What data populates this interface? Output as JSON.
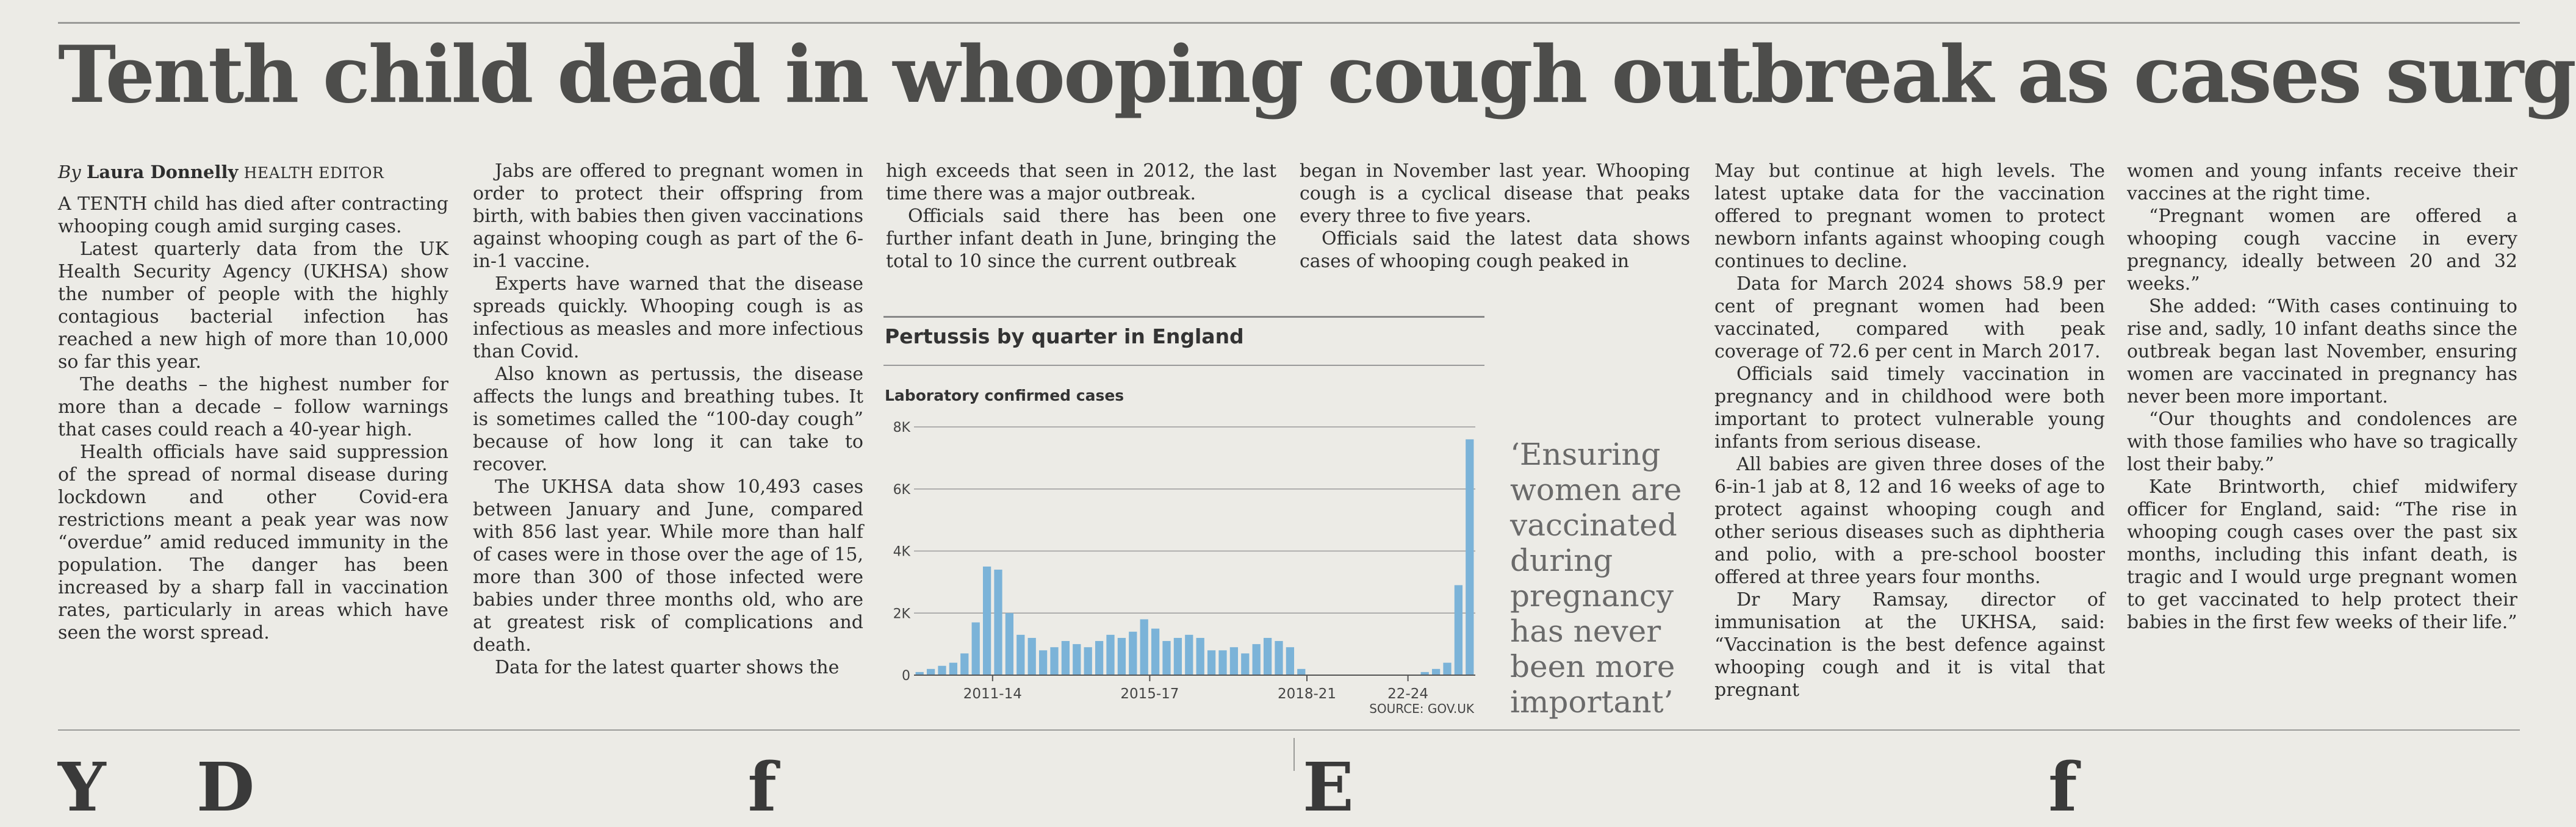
{
  "headline": "Tenth child dead in whooping cough outbreak as cases surge",
  "byline": {
    "by": "By",
    "name": "Laura Donnelly",
    "role": "HEALTH EDITOR"
  },
  "columns": [
    [
      "A TENTH child has died after contracting whooping cough amid surging cases.",
      "Latest quarterly data from the UK Health Security Agency (UKHSA) show the number of people with the highly contagious bacterial infection has reached a new high of more than 10,000 so far this year.",
      "The deaths – the highest number for more than a decade – follow warnings that cases could reach a 40-year high.",
      "Health officials have said suppression of the spread of normal disease during lockdown and other Covid-era restrictions meant a peak year was now “overdue” amid reduced immunity in the population. The danger has been increased by a sharp fall in vaccination rates, particularly in areas which have seen the worst spread."
    ],
    [
      "Jabs are offered to pregnant women in order to protect their offspring from birth, with babies then given vaccinations against whooping cough as part of the 6-in-1 vaccine.",
      "Experts have warned that the disease spreads quickly. Whooping cough is as infectious as measles and more infectious than Covid.",
      "Also known as pertussis, the disease affects the lungs and breathing tubes. It is sometimes called the “100-day cough” because of how long it can take to recover.",
      "The UKHSA data show 10,493 cases between January and June, compared with 856 last year. While more than half of cases were in those over the age of 15, more than 300 of those infected were babies under three months old, who are at greatest risk of complications and death.",
      "Data for the latest quarter shows the"
    ],
    [
      "high exceeds that seen in 2012, the last time there was a major outbreak.",
      "Officials said there has been one further infant death in June, bringing the total to 10 since the current outbreak"
    ],
    [
      "began in November last year. Whooping cough is a cyclical disease that peaks every three to five years.",
      "Officials said the latest data shows cases of whooping cough peaked in"
    ],
    [
      "May but continue at high levels. The latest uptake data for the vaccination offered to pregnant women to protect newborn infants against whooping cough continues to decline.",
      "Data for March 2024 shows 58.9 per cent of pregnant women had been vaccinated, compared with peak coverage of 72.6 per cent in March 2017.",
      "Officials said timely vaccination in pregnancy and in childhood were both important to protect vulnerable young infants from serious disease.",
      "All babies are given three doses of the 6-in-1 jab at 8, 12 and 16 weeks of age to protect against whooping cough and other serious diseases such as diphtheria and polio, with a pre-school booster offered at three years four months.",
      "Dr Mary Ramsay, director of immunisation at the UKHSA, said: “Vaccination is the best defence against whooping cough and it is vital that pregnant"
    ],
    [
      "women and young infants receive their vaccines at the right time.",
      "“Pregnant women are offered a whooping cough vaccine in every pregnancy, ideally between 20 and 32 weeks.”",
      "She added: “With cases continuing to rise and, sadly, 10 infant deaths since the outbreak began last November, ensuring women are vaccinated in pregnancy has never been more important.",
      "“Our thoughts and condolences are with those families who have so tragically lost their baby.”",
      "Kate Brintworth, chief midwifery officer for England, said: “The rise in whooping cough cases over the past six months, including this infant death, is tragic and I would urge pregnant women to get vaccinated to help protect their babies in the first few weeks of their life.”"
    ]
  ],
  "pullquote": "‘Ensuring women are vaccinated during pregnancy has never been more important’",
  "next_headlines": [
    "Y",
    "D",
    "f",
    "E",
    "f"
  ],
  "chart_data": {
    "type": "bar",
    "title": "Pertussis by quarter in England",
    "ylabel": "Laboratory confirmed cases",
    "source": "SOURCE: GOV.UK",
    "ylim": [
      0,
      8000
    ],
    "yticks": [
      "0",
      "2K",
      "4K",
      "6K",
      "8K"
    ],
    "xtick_labels": [
      "2011-14",
      "2015-17",
      "2018-21",
      "22-24"
    ],
    "xtick_positions": [
      6.5,
      20.5,
      34.5,
      43.5
    ],
    "values": [
      100,
      200,
      300,
      400,
      700,
      1700,
      3500,
      3400,
      2000,
      1300,
      1200,
      800,
      900,
      1100,
      1000,
      900,
      1100,
      1300,
      1200,
      1400,
      1800,
      1500,
      1100,
      1200,
      1300,
      1200,
      800,
      800,
      900,
      700,
      1000,
      1200,
      1100,
      900,
      200,
      0,
      0,
      0,
      0,
      0,
      0,
      0,
      0,
      0,
      0,
      100,
      200,
      400,
      2900,
      7600
    ],
    "bar_color": "#7bb3d8"
  }
}
